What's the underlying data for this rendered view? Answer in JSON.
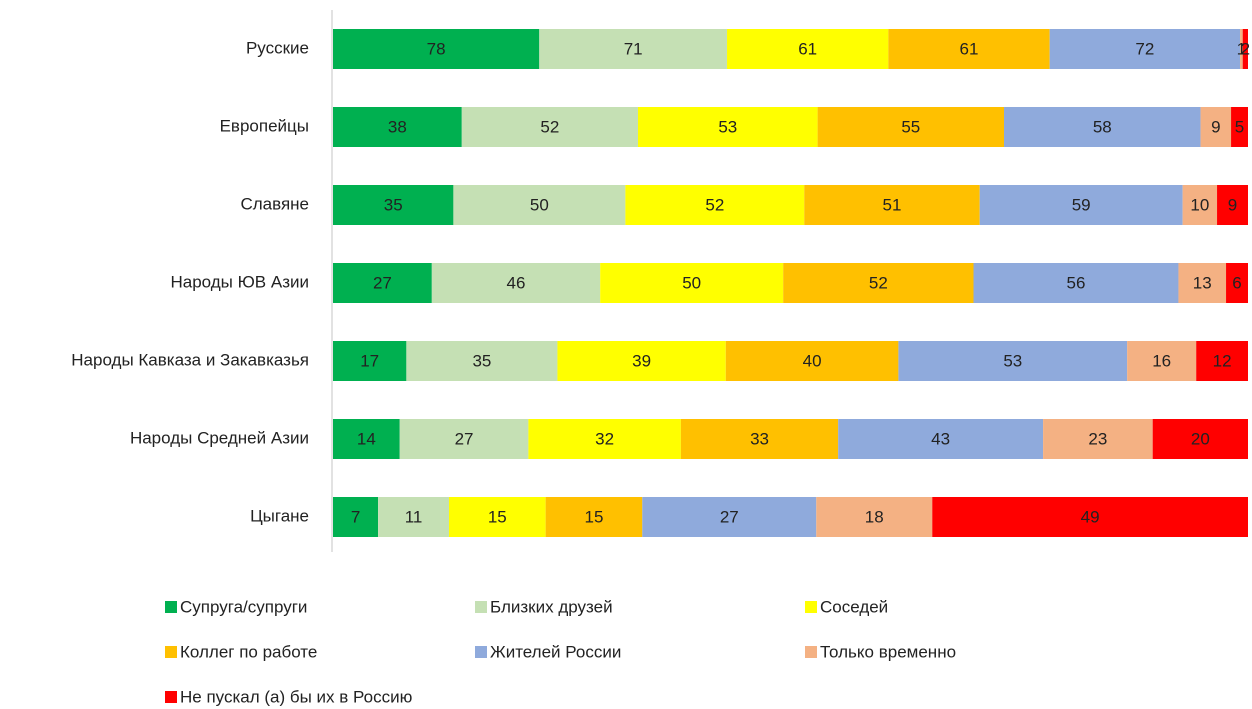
{
  "chart_data": {
    "type": "bar",
    "orientation": "horizontal",
    "stacked": true,
    "normalized": true,
    "categories": [
      "Русские",
      "Европейцы",
      "Славяне",
      "Народы ЮВ Азии",
      "Народы Кавказа и Закавказья",
      "Народы Средней Азии",
      "Цыгане"
    ],
    "series": [
      {
        "name": "Супруга/супруги",
        "color": "#00b050",
        "values": [
          78,
          38,
          35,
          27,
          17,
          14,
          7
        ]
      },
      {
        "name": "Близких друзей",
        "color": "#c5e0b4",
        "values": [
          71,
          52,
          50,
          46,
          35,
          27,
          11
        ]
      },
      {
        "name": "Соседей",
        "color": "#ffff00",
        "values": [
          61,
          53,
          52,
          50,
          39,
          32,
          15
        ]
      },
      {
        "name": "Коллег по работе",
        "color": "#ffc000",
        "values": [
          61,
          55,
          51,
          52,
          40,
          33,
          15
        ]
      },
      {
        "name": "Жителей России",
        "color": "#8faadc",
        "values": [
          72,
          58,
          59,
          56,
          53,
          43,
          27
        ]
      },
      {
        "name": "Только временно",
        "color": "#f4b183",
        "values": [
          1,
          9,
          10,
          13,
          16,
          23,
          18
        ]
      },
      {
        "name": "Не пускал (а) бы их в Россию",
        "color": "#ff0000",
        "values": [
          2,
          5,
          9,
          6,
          12,
          20,
          49
        ]
      }
    ],
    "legend": "bottom"
  }
}
